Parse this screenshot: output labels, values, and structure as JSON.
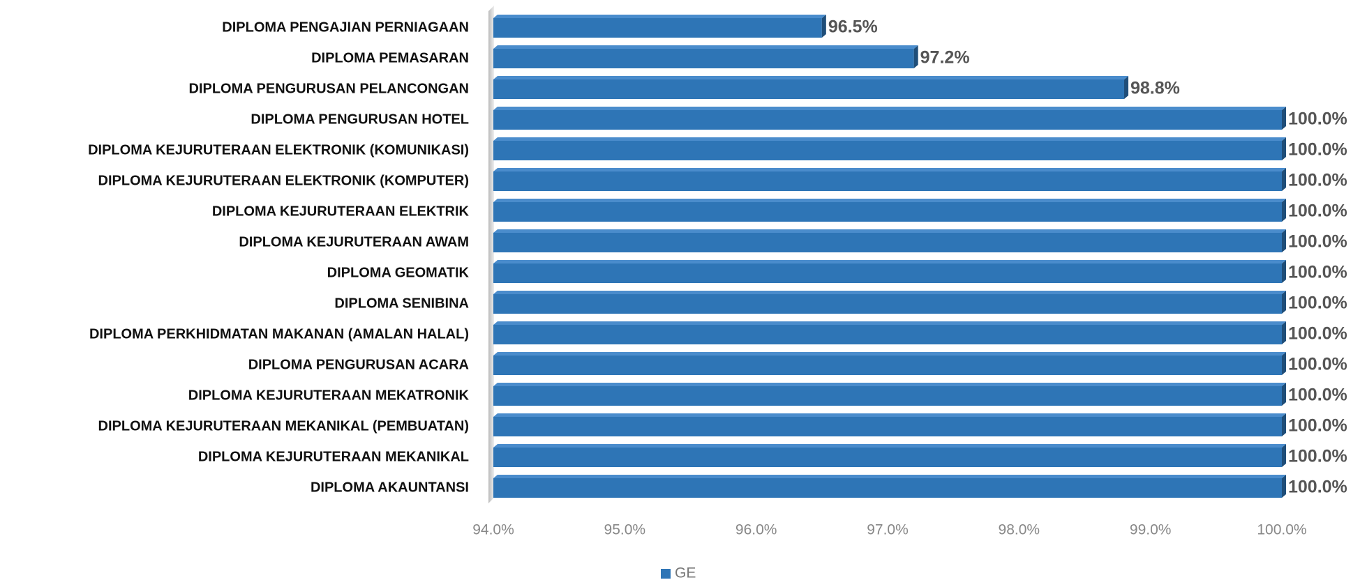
{
  "chart_data": {
    "type": "bar",
    "orientation": "horizontal",
    "categories": [
      "DIPLOMA PENGAJIAN PERNIAGAAN",
      "DIPLOMA PEMASARAN",
      "DIPLOMA PENGURUSAN PELANCONGAN",
      "DIPLOMA PENGURUSAN HOTEL",
      "DIPLOMA KEJURUTERAAN ELEKTRONIK (KOMUNIKASI)",
      "DIPLOMA KEJURUTERAAN ELEKTRONIK (KOMPUTER)",
      "DIPLOMA KEJURUTERAAN ELEKTRIK",
      "DIPLOMA KEJURUTERAAN AWAM",
      "DIPLOMA GEOMATIK",
      "DIPLOMA SENIBINA",
      "DIPLOMA PERKHIDMATAN MAKANAN (AMALAN HALAL)",
      "DIPLOMA PENGURUSAN ACARA",
      "DIPLOMA KEJURUTERAAN MEKATRONIK",
      "DIPLOMA KEJURUTERAAN MEKANIKAL (PEMBUATAN)",
      "DIPLOMA KEJURUTERAAN MEKANIKAL",
      "DIPLOMA AKAUNTANSI"
    ],
    "series": [
      {
        "name": "GE",
        "color": "#2e75b6",
        "values": [
          96.5,
          97.2,
          98.8,
          100,
          100,
          100,
          100,
          100,
          100,
          100,
          100,
          100,
          100,
          100,
          100,
          100
        ],
        "value_labels": [
          "96.5%",
          "97.2%",
          "98.8%",
          "100.0%",
          "100.0%",
          "100.0%",
          "100.0%",
          "100.0%",
          "100.0%",
          "100.0%",
          "100.0%",
          "100.0%",
          "100.0%",
          "100.0%",
          "100.0%",
          "100.0%"
        ]
      }
    ],
    "xlim": [
      94,
      100
    ],
    "xticks": [
      {
        "value": 94,
        "label": "94.0%"
      },
      {
        "value": 95,
        "label": "95.0%"
      },
      {
        "value": 96,
        "label": "96.0%"
      },
      {
        "value": 97,
        "label": "97.0%"
      },
      {
        "value": 98,
        "label": "98.0%"
      },
      {
        "value": 99,
        "label": "99.0%"
      },
      {
        "value": 100,
        "label": "100.0%"
      }
    ],
    "legend": "bottom"
  }
}
